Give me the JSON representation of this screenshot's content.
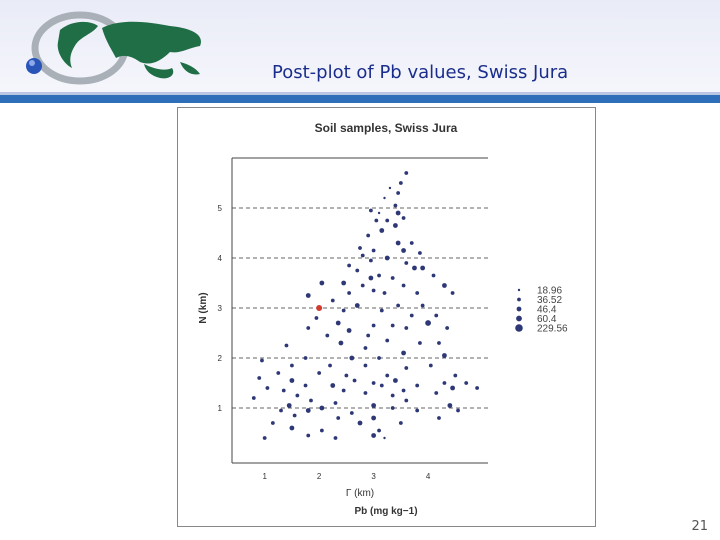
{
  "slide": {
    "title": "Post-plot of Pb values, Swiss Jura",
    "page_number": "21"
  },
  "logo": {
    "icon": "globe-logo-icon",
    "colors": {
      "land": "#1f6e45",
      "ring": "#a9b0b8",
      "sphere": "#2a55b8"
    }
  },
  "colors": {
    "header_bar": "#2f6fba",
    "title": "#1a2d8c",
    "points": "#2e3876",
    "highlight": "#d23b2e"
  },
  "chart_data": {
    "type": "scatter",
    "title": "Soil samples, Swiss Jura",
    "xlabel": "Γ (km)",
    "ylabel": "N (km)",
    "sublabel": "Pb (mg kg−1)",
    "xlim": [
      0.4,
      5.1
    ],
    "ylim": [
      -0.1,
      6.0
    ],
    "xticks": [
      "1",
      "2",
      "3",
      "4"
    ],
    "yticks": [
      "1",
      "2",
      "3",
      "4",
      "5"
    ],
    "grid": "horizontal-dashed",
    "legend": {
      "placement": "right",
      "entries": [
        {
          "label": "18.96",
          "size": 1
        },
        {
          "label": "36.52",
          "size": 2
        },
        {
          "label": "46.4",
          "size": 3
        },
        {
          "label": "60.4",
          "size": 4
        },
        {
          "label": "229.56",
          "size": 5
        }
      ]
    },
    "highlight": {
      "x": 2.0,
      "y": 3.0,
      "color": "#d23b2e"
    },
    "points": [
      [
        3.6,
        5.7,
        2
      ],
      [
        3.5,
        5.5,
        2
      ],
      [
        3.3,
        5.4,
        1
      ],
      [
        3.45,
        5.3,
        2
      ],
      [
        3.2,
        5.2,
        1
      ],
      [
        3.4,
        5.05,
        2
      ],
      [
        2.95,
        4.95,
        2
      ],
      [
        3.1,
        4.9,
        1
      ],
      [
        3.45,
        4.9,
        3
      ],
      [
        3.05,
        4.75,
        2
      ],
      [
        3.25,
        4.75,
        2
      ],
      [
        3.55,
        4.8,
        2
      ],
      [
        3.4,
        4.65,
        3
      ],
      [
        3.15,
        4.55,
        3
      ],
      [
        2.9,
        4.45,
        2
      ],
      [
        3.45,
        4.3,
        3
      ],
      [
        3.7,
        4.3,
        2
      ],
      [
        2.75,
        4.2,
        2
      ],
      [
        3.0,
        4.15,
        2
      ],
      [
        2.8,
        4.05,
        2
      ],
      [
        3.55,
        4.15,
        3
      ],
      [
        3.85,
        4.1,
        2
      ],
      [
        2.95,
        3.95,
        2
      ],
      [
        3.25,
        4.0,
        3
      ],
      [
        3.6,
        3.9,
        2
      ],
      [
        2.55,
        3.85,
        2
      ],
      [
        3.75,
        3.8,
        3
      ],
      [
        3.9,
        3.8,
        3
      ],
      [
        2.7,
        3.75,
        2
      ],
      [
        2.95,
        3.6,
        3
      ],
      [
        3.1,
        3.65,
        2
      ],
      [
        3.35,
        3.6,
        2
      ],
      [
        4.1,
        3.65,
        2
      ],
      [
        2.05,
        3.5,
        3
      ],
      [
        2.45,
        3.5,
        3
      ],
      [
        2.8,
        3.45,
        2
      ],
      [
        3.55,
        3.45,
        2
      ],
      [
        4.3,
        3.45,
        3
      ],
      [
        3.0,
        3.35,
        2
      ],
      [
        1.8,
        3.25,
        3
      ],
      [
        2.55,
        3.3,
        2
      ],
      [
        3.2,
        3.3,
        2
      ],
      [
        3.8,
        3.3,
        2
      ],
      [
        4.45,
        3.3,
        2
      ],
      [
        2.25,
        3.15,
        2
      ],
      [
        2.7,
        3.05,
        3
      ],
      [
        3.45,
        3.05,
        2
      ],
      [
        3.9,
        3.05,
        2
      ],
      [
        2.45,
        2.95,
        2
      ],
      [
        3.15,
        2.95,
        2
      ],
      [
        3.7,
        2.85,
        2
      ],
      [
        4.15,
        2.85,
        2
      ],
      [
        1.95,
        2.8,
        2
      ],
      [
        2.35,
        2.7,
        3
      ],
      [
        3.0,
        2.65,
        2
      ],
      [
        3.35,
        2.65,
        2
      ],
      [
        4.0,
        2.7,
        4
      ],
      [
        1.8,
        2.6,
        2
      ],
      [
        2.55,
        2.55,
        3
      ],
      [
        3.6,
        2.6,
        2
      ],
      [
        4.35,
        2.6,
        2
      ],
      [
        2.15,
        2.45,
        2
      ],
      [
        2.9,
        2.45,
        2
      ],
      [
        3.25,
        2.35,
        2
      ],
      [
        1.4,
        2.25,
        2
      ],
      [
        2.4,
        2.3,
        3
      ],
      [
        3.85,
        2.3,
        2
      ],
      [
        4.2,
        2.3,
        2
      ],
      [
        2.85,
        2.2,
        2
      ],
      [
        3.55,
        2.1,
        3
      ],
      [
        1.75,
        2.0,
        2
      ],
      [
        2.6,
        2.0,
        3
      ],
      [
        3.1,
        2.0,
        2
      ],
      [
        4.3,
        2.05,
        3
      ],
      [
        0.95,
        1.95,
        2
      ],
      [
        1.5,
        1.85,
        2
      ],
      [
        2.2,
        1.85,
        2
      ],
      [
        2.85,
        1.85,
        2
      ],
      [
        3.6,
        1.8,
        2
      ],
      [
        4.05,
        1.85,
        2
      ],
      [
        1.25,
        1.7,
        2
      ],
      [
        2.0,
        1.7,
        2
      ],
      [
        2.5,
        1.65,
        2
      ],
      [
        3.25,
        1.65,
        2
      ],
      [
        4.5,
        1.65,
        2
      ],
      [
        0.9,
        1.6,
        2
      ],
      [
        1.5,
        1.55,
        3
      ],
      [
        2.65,
        1.55,
        2
      ],
      [
        3.0,
        1.5,
        2
      ],
      [
        3.4,
        1.55,
        3
      ],
      [
        4.3,
        1.5,
        2
      ],
      [
        4.7,
        1.5,
        2
      ],
      [
        1.75,
        1.45,
        2
      ],
      [
        2.25,
        1.45,
        3
      ],
      [
        3.15,
        1.45,
        2
      ],
      [
        3.8,
        1.45,
        2
      ],
      [
        4.45,
        1.4,
        3
      ],
      [
        1.05,
        1.4,
        2
      ],
      [
        1.35,
        1.35,
        2
      ],
      [
        2.45,
        1.35,
        2
      ],
      [
        3.55,
        1.35,
        2
      ],
      [
        4.15,
        1.3,
        2
      ],
      [
        4.9,
        1.4,
        2
      ],
      [
        1.6,
        1.25,
        2
      ],
      [
        2.85,
        1.3,
        2
      ],
      [
        3.35,
        1.25,
        2
      ],
      [
        0.8,
        1.2,
        2
      ],
      [
        1.85,
        1.15,
        2
      ],
      [
        2.3,
        1.1,
        2
      ],
      [
        3.6,
        1.15,
        2
      ],
      [
        1.45,
        1.05,
        3
      ],
      [
        2.05,
        1.0,
        3
      ],
      [
        3.0,
        1.05,
        3
      ],
      [
        3.35,
        1.0,
        2
      ],
      [
        4.4,
        1.05,
        3
      ],
      [
        1.3,
        0.95,
        2
      ],
      [
        1.8,
        0.95,
        3
      ],
      [
        2.6,
        0.9,
        2
      ],
      [
        3.8,
        0.95,
        2
      ],
      [
        4.55,
        0.95,
        2
      ],
      [
        1.55,
        0.85,
        2
      ],
      [
        2.35,
        0.8,
        2
      ],
      [
        3.0,
        0.8,
        3
      ],
      [
        4.2,
        0.8,
        2
      ],
      [
        1.15,
        0.7,
        2
      ],
      [
        2.75,
        0.7,
        3
      ],
      [
        3.5,
        0.7,
        2
      ],
      [
        1.5,
        0.6,
        3
      ],
      [
        2.05,
        0.55,
        2
      ],
      [
        3.1,
        0.55,
        2
      ],
      [
        1.8,
        0.45,
        2
      ],
      [
        1.0,
        0.4,
        2
      ],
      [
        2.3,
        0.4,
        2
      ],
      [
        3.2,
        0.4,
        1
      ],
      [
        3.0,
        0.45,
        3
      ]
    ]
  }
}
